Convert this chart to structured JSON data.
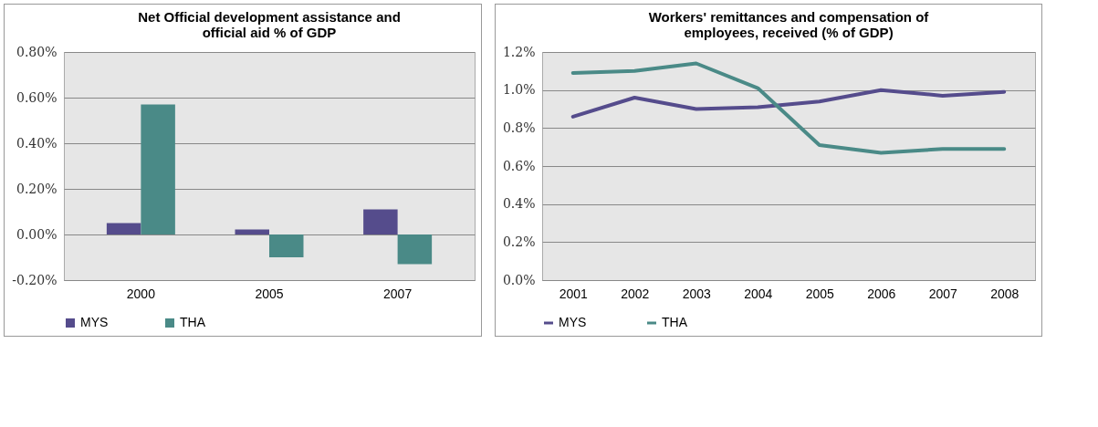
{
  "chart_data": [
    {
      "type": "bar",
      "title": "Net Official development assistance and official aid % of GDP",
      "categories": [
        "2000",
        "2005",
        "2007"
      ],
      "series": [
        {
          "name": "MYS",
          "color": "#554c8c",
          "values": [
            0.05,
            0.022,
            0.11
          ]
        },
        {
          "name": "THA",
          "color": "#4a8a87",
          "values": [
            0.57,
            -0.1,
            -0.13
          ]
        }
      ],
      "ylim": [
        -0.2,
        0.8
      ],
      "yticks": [
        {
          "value": -0.2,
          "label": "-0.20%"
        },
        {
          "value": 0,
          "label": "0.00%"
        },
        {
          "value": 0.2,
          "label": "0.20%"
        },
        {
          "value": 0.4,
          "label": "0.40%"
        },
        {
          "value": 0.6,
          "label": "0.60%"
        },
        {
          "value": 0.8,
          "label": "0.80%"
        }
      ],
      "grid": "y",
      "legend": "bottom"
    },
    {
      "type": "line",
      "title": "Workers' remittances and compensation of employees, received (% of GDP)",
      "categories": [
        "2001",
        "2002",
        "2003",
        "2004",
        "2005",
        "2006",
        "2007",
        "2008"
      ],
      "series": [
        {
          "name": "MYS",
          "color": "#554c8c",
          "values": [
            0.86,
            0.96,
            0.9,
            0.91,
            0.94,
            1.0,
            0.97,
            0.99
          ]
        },
        {
          "name": "THA",
          "color": "#4a8a87",
          "values": [
            1.09,
            1.1,
            1.14,
            1.01,
            0.71,
            0.67,
            0.69,
            0.69
          ]
        }
      ],
      "ylim": [
        0,
        1.2
      ],
      "yticks": [
        {
          "value": 0,
          "label": "0.0%"
        },
        {
          "value": 0.2,
          "label": "0.2%"
        },
        {
          "value": 0.4,
          "label": "0.4%"
        },
        {
          "value": 0.6,
          "label": "0.6%"
        },
        {
          "value": 0.8,
          "label": "0.8%"
        },
        {
          "value": 1.0,
          "label": "1.0%"
        },
        {
          "value": 1.2,
          "label": "1.2%"
        }
      ],
      "grid": "y",
      "legend": "bottom"
    }
  ]
}
